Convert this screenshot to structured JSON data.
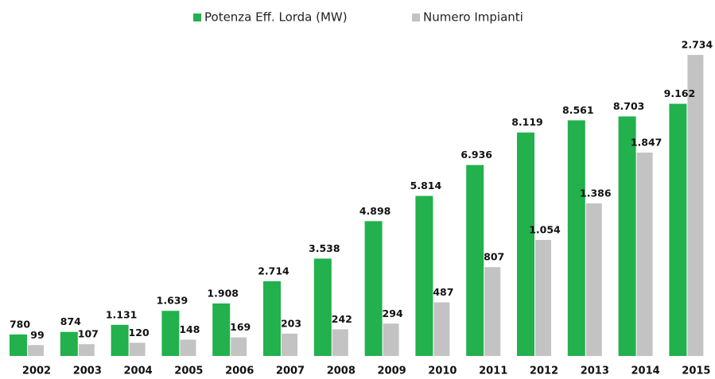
{
  "chart_data": {
    "type": "bar",
    "categories": [
      "2002",
      "2003",
      "2004",
      "2005",
      "2006",
      "2007",
      "2008",
      "2009",
      "2010",
      "2011",
      "2012",
      "2013",
      "2014",
      "2015"
    ],
    "series": [
      {
        "name": "Potenza Eff. Lorda (MW)",
        "color": "#22b14c",
        "values": [
          780,
          874,
          1131,
          1639,
          1908,
          2714,
          3538,
          4898,
          5814,
          6936,
          8119,
          8561,
          8703,
          9162
        ],
        "value_labels": [
          "780",
          "874",
          "1.131",
          "1.639",
          "1.908",
          "2.714",
          "3.538",
          "4.898",
          "5.814",
          "6.936",
          "8.119",
          "8.561",
          "8.703",
          "9.162"
        ]
      },
      {
        "name": "Numero Impianti",
        "color": "#c3c3c3",
        "axis": "y2",
        "values": [
          99,
          107,
          120,
          148,
          169,
          203,
          242,
          294,
          487,
          807,
          1054,
          1386,
          1847,
          2734
        ],
        "value_labels": [
          "99",
          "107",
          "120",
          "148",
          "169",
          "203",
          "242",
          "294",
          "487",
          "807",
          "1.054",
          "1.386",
          "1.847",
          "2.734"
        ]
      }
    ],
    "ylim": [
      0,
      11200
    ],
    "y2lim": [
      0,
      2800
    ],
    "legend": "top"
  }
}
